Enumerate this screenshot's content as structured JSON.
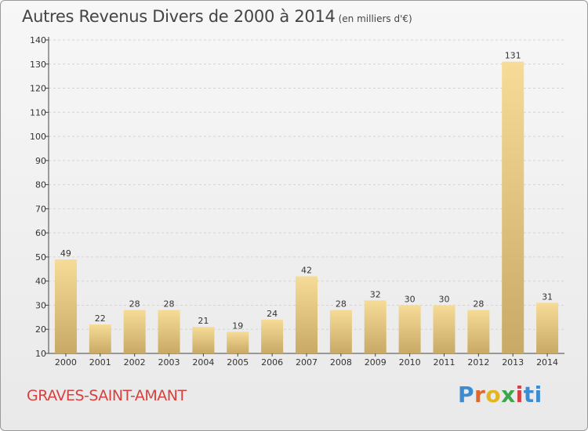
{
  "header": {
    "title": "Autres Revenus Divers de 2000 à 2014",
    "subtitle": "(en milliers d'€)"
  },
  "footer": {
    "commune": "GRAVES-SAINT-AMANT",
    "logo": {
      "letters": [
        "P",
        "r",
        "o",
        "x",
        "i",
        "t",
        "i"
      ]
    }
  },
  "colors": {
    "bar_light": "#f6dc97",
    "bar_dark": "#c8a966",
    "grid": "#d4d4d4",
    "title": "#444444",
    "commune": "#d5413e"
  },
  "chart_data": {
    "type": "bar",
    "title": "Autres Revenus Divers de 2000 à 2014",
    "subtitle": "(en milliers d'€)",
    "xlabel": "",
    "ylabel": "",
    "categories": [
      "2000",
      "2001",
      "2002",
      "2003",
      "2004",
      "2005",
      "2006",
      "2007",
      "2008",
      "2009",
      "2010",
      "2011",
      "2012",
      "2013",
      "2014"
    ],
    "values": [
      49,
      22,
      28,
      28,
      21,
      19,
      24,
      42,
      28,
      32,
      30,
      30,
      28,
      131,
      31
    ],
    "ylim": [
      10,
      140
    ],
    "yticks": [
      10,
      20,
      30,
      40,
      50,
      60,
      70,
      80,
      90,
      100,
      110,
      120,
      130,
      140
    ],
    "grid": true,
    "data_labels": true
  }
}
